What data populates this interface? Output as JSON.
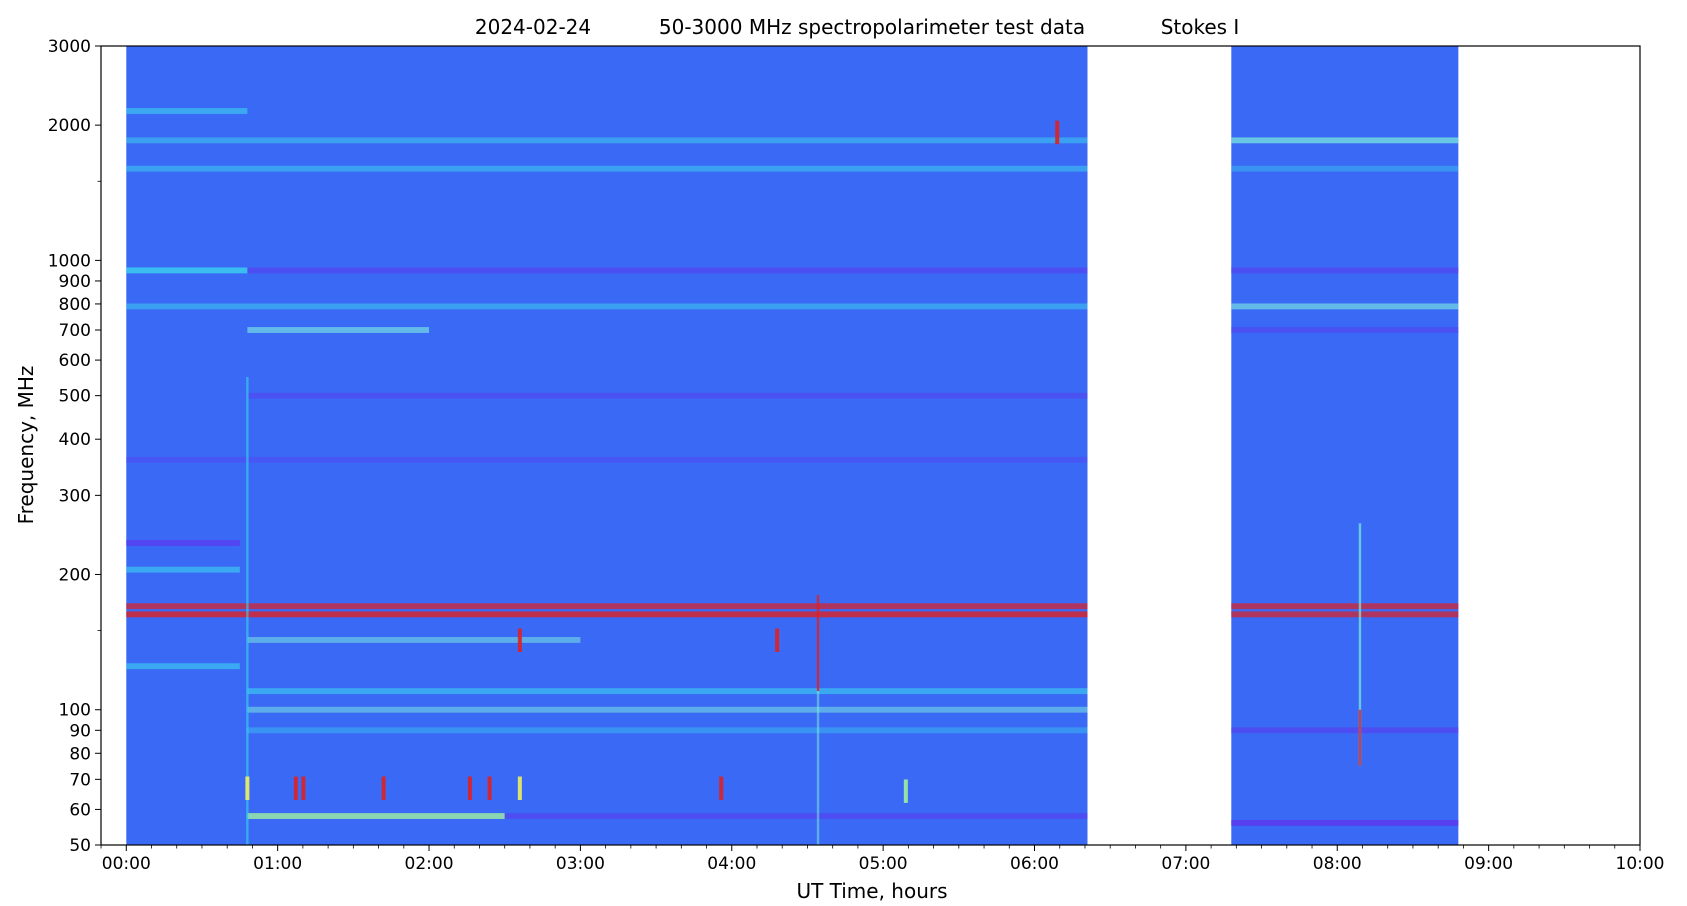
{
  "chart_data": {
    "type": "heatmap",
    "title_parts": [
      "2024-02-24",
      "50-3000 MHz spectropolarimeter test data",
      "Stokes I"
    ],
    "xlabel": "UT Time, hours",
    "ylabel": "Frequency, MHz",
    "xlim": [
      -0.167,
      10.0
    ],
    "ylim": [
      50,
      3000
    ],
    "y_scale": "log",
    "x_ticks": [
      {
        "value": 0,
        "label": "00:00"
      },
      {
        "value": 1,
        "label": "01:00"
      },
      {
        "value": 2,
        "label": "02:00"
      },
      {
        "value": 3,
        "label": "03:00"
      },
      {
        "value": 4,
        "label": "04:00"
      },
      {
        "value": 5,
        "label": "05:00"
      },
      {
        "value": 6,
        "label": "06:00"
      },
      {
        "value": 7,
        "label": "07:00"
      },
      {
        "value": 8,
        "label": "08:00"
      },
      {
        "value": 9,
        "label": "09:00"
      },
      {
        "value": 10,
        "label": "10:00"
      }
    ],
    "y_ticks": [
      {
        "value": 50,
        "label": "50"
      },
      {
        "value": 60,
        "label": "60"
      },
      {
        "value": 70,
        "label": "70"
      },
      {
        "value": 80,
        "label": "80"
      },
      {
        "value": 90,
        "label": "90"
      },
      {
        "value": 100,
        "label": "100"
      },
      {
        "value": 200,
        "label": "200"
      },
      {
        "value": 300,
        "label": "300"
      },
      {
        "value": 400,
        "label": "400"
      },
      {
        "value": 500,
        "label": "500"
      },
      {
        "value": 600,
        "label": "600"
      },
      {
        "value": 700,
        "label": "700"
      },
      {
        "value": 800,
        "label": "800"
      },
      {
        "value": 900,
        "label": "900"
      },
      {
        "value": 1000,
        "label": "1000"
      },
      {
        "value": 2000,
        "label": "2000"
      },
      {
        "value": 3000,
        "label": "3000"
      }
    ],
    "y_minor_ticks": [
      150,
      1500
    ],
    "data_segments": [
      {
        "start": 0.0,
        "end": 6.35
      },
      {
        "start": 7.3,
        "end": 8.8
      }
    ],
    "colors": {
      "background": "#3a6af5",
      "blue_dark": "#5a3cf0",
      "cyan": "#3bd3f0",
      "cyan_light": "#7ef0e0",
      "green": "#a0f0a0",
      "yellow": "#f0f060",
      "red": "#e02020"
    },
    "frequency_bands": [
      {
        "freq": 2150,
        "start": 0.0,
        "end": 0.8,
        "color": "cyan",
        "intensity": 0.6
      },
      {
        "freq": 1850,
        "start": 0.0,
        "end": 6.35,
        "color": "cyan",
        "intensity": 0.5
      },
      {
        "freq": 1850,
        "start": 7.3,
        "end": 8.8,
        "color": "cyan_light",
        "intensity": 0.7
      },
      {
        "freq": 1600,
        "start": 0.0,
        "end": 6.35,
        "color": "cyan",
        "intensity": 0.5
      },
      {
        "freq": 1600,
        "start": 7.3,
        "end": 8.8,
        "color": "cyan",
        "intensity": 0.4
      },
      {
        "freq": 950,
        "start": 0.0,
        "end": 0.8,
        "color": "cyan",
        "intensity": 0.8
      },
      {
        "freq": 950,
        "start": 0.8,
        "end": 6.35,
        "color": "blue_dark",
        "intensity": 0.6
      },
      {
        "freq": 950,
        "start": 7.3,
        "end": 8.8,
        "color": "blue_dark",
        "intensity": 0.6
      },
      {
        "freq": 790,
        "start": 0.0,
        "end": 6.35,
        "color": "cyan",
        "intensity": 0.5
      },
      {
        "freq": 790,
        "start": 7.3,
        "end": 8.8,
        "color": "cyan_light",
        "intensity": 0.6
      },
      {
        "freq": 700,
        "start": 0.8,
        "end": 2.0,
        "color": "cyan_light",
        "intensity": 0.6
      },
      {
        "freq": 700,
        "start": 7.3,
        "end": 8.8,
        "color": "blue_dark",
        "intensity": 0.5
      },
      {
        "freq": 500,
        "start": 0.8,
        "end": 6.35,
        "color": "blue_dark",
        "intensity": 0.5
      },
      {
        "freq": 360,
        "start": 0.0,
        "end": 6.35,
        "color": "blue_dark",
        "intensity": 0.4
      },
      {
        "freq": 235,
        "start": 0.0,
        "end": 0.75,
        "color": "blue_dark",
        "intensity": 0.8
      },
      {
        "freq": 205,
        "start": 0.0,
        "end": 0.75,
        "color": "cyan",
        "intensity": 0.6
      },
      {
        "freq": 170,
        "start": 0.0,
        "end": 6.35,
        "color": "red",
        "intensity": 0.7
      },
      {
        "freq": 170,
        "start": 7.3,
        "end": 8.8,
        "color": "red",
        "intensity": 0.7
      },
      {
        "freq": 163,
        "start": 0.0,
        "end": 6.35,
        "color": "red",
        "intensity": 0.8
      },
      {
        "freq": 163,
        "start": 7.3,
        "end": 8.8,
        "color": "red",
        "intensity": 0.7
      },
      {
        "freq": 143,
        "start": 0.8,
        "end": 3.0,
        "color": "cyan_light",
        "intensity": 0.5
      },
      {
        "freq": 125,
        "start": 0.0,
        "end": 0.75,
        "color": "cyan",
        "intensity": 0.6
      },
      {
        "freq": 110,
        "start": 0.8,
        "end": 6.35,
        "color": "cyan",
        "intensity": 0.6
      },
      {
        "freq": 100,
        "start": 0.8,
        "end": 6.35,
        "color": "cyan_light",
        "intensity": 0.5
      },
      {
        "freq": 90,
        "start": 0.8,
        "end": 6.35,
        "color": "cyan",
        "intensity": 0.4
      },
      {
        "freq": 90,
        "start": 7.3,
        "end": 8.8,
        "color": "blue_dark",
        "intensity": 0.6
      },
      {
        "freq": 58,
        "start": 0.8,
        "end": 2.5,
        "color": "green",
        "intensity": 0.8
      },
      {
        "freq": 58,
        "start": 2.5,
        "end": 6.35,
        "color": "blue_dark",
        "intensity": 0.6
      },
      {
        "freq": 56,
        "start": 7.3,
        "end": 8.8,
        "color": "blue_dark",
        "intensity": 0.9
      }
    ],
    "vertical_features": [
      {
        "time": 0.8,
        "freq_low": 50,
        "freq_high": 550,
        "color": "cyan",
        "intensity": 0.6
      },
      {
        "time": 4.57,
        "freq_low": 110,
        "freq_high": 180,
        "color": "red",
        "intensity": 0.8
      },
      {
        "time": 4.57,
        "freq_low": 50,
        "freq_high": 110,
        "color": "cyan_light",
        "intensity": 0.5
      },
      {
        "time": 8.15,
        "freq_low": 75,
        "freq_high": 260,
        "color": "cyan_light",
        "intensity": 0.7
      },
      {
        "time": 8.15,
        "freq_low": 75,
        "freq_high": 100,
        "color": "red",
        "intensity": 0.8
      }
    ],
    "burst_features": [
      {
        "time": 0.8,
        "freq": 67,
        "color": "yellow"
      },
      {
        "time": 1.12,
        "freq": 67,
        "color": "red"
      },
      {
        "time": 1.17,
        "freq": 67,
        "color": "red"
      },
      {
        "time": 1.7,
        "freq": 67,
        "color": "red"
      },
      {
        "time": 2.27,
        "freq": 67,
        "color": "red"
      },
      {
        "time": 2.4,
        "freq": 67,
        "color": "red"
      },
      {
        "time": 2.6,
        "freq": 67,
        "color": "yellow"
      },
      {
        "time": 3.93,
        "freq": 67,
        "color": "red"
      },
      {
        "time": 5.15,
        "freq": 66,
        "color": "green"
      },
      {
        "time": 4.3,
        "freq": 143,
        "color": "red"
      },
      {
        "time": 2.6,
        "freq": 143,
        "color": "red"
      },
      {
        "time": 6.15,
        "freq": 1930,
        "color": "red"
      }
    ]
  }
}
